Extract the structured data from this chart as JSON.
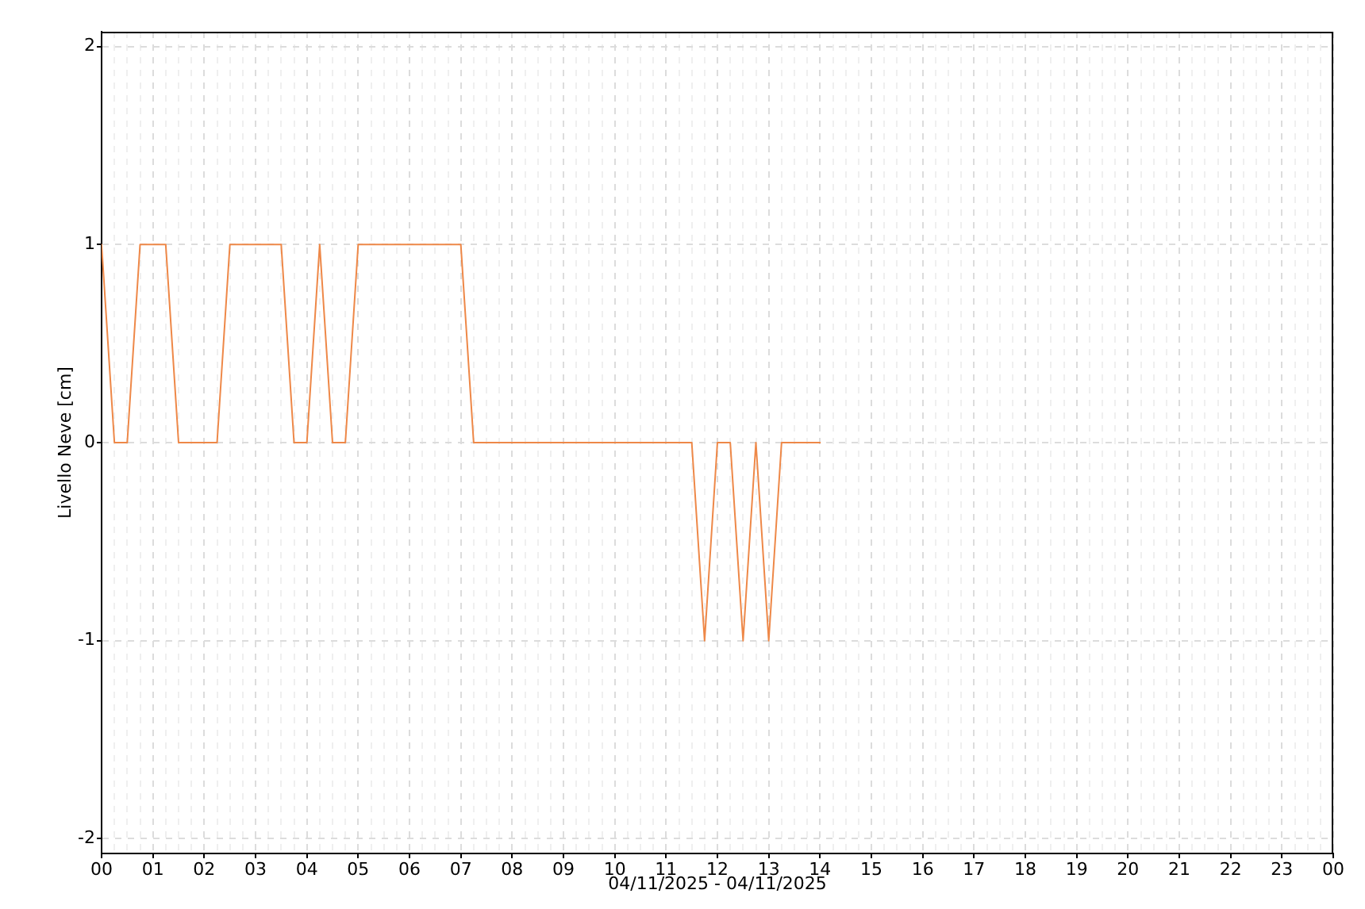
{
  "chart_data": {
    "type": "line",
    "xlabel": "04/11/2025 - 04/11/2025",
    "ylabel": "Livello Neve [cm]",
    "x": [
      0,
      0.25,
      0.5,
      0.75,
      1,
      1.25,
      1.5,
      1.75,
      2,
      2.25,
      2.5,
      2.75,
      3,
      3.25,
      3.5,
      3.75,
      4,
      4.25,
      4.5,
      4.75,
      5,
      5.25,
      5.5,
      5.75,
      6,
      6.25,
      6.5,
      6.75,
      7,
      7.25,
      7.5,
      7.75,
      8,
      8.25,
      8.5,
      8.75,
      9,
      9.25,
      9.5,
      9.75,
      10,
      10.25,
      10.5,
      10.75,
      11,
      11.25,
      11.5,
      11.75,
      12,
      12.25,
      12.5,
      12.75,
      13,
      13.25,
      13.5,
      13.75,
      14
    ],
    "series": [
      {
        "color": "#ee8848",
        "values": [
          1,
          0,
          0,
          1,
          1,
          1,
          0,
          0,
          0,
          0,
          1,
          1,
          1,
          1,
          1,
          0,
          0,
          1,
          0,
          0,
          1,
          1,
          1,
          1,
          1,
          1,
          1,
          1,
          1,
          0,
          0,
          0,
          0,
          0,
          0,
          0,
          0,
          0,
          0,
          0,
          0,
          0,
          0,
          0,
          0,
          0,
          0,
          -1,
          0,
          0,
          -1,
          0,
          -1,
          0,
          0,
          0,
          0
        ]
      }
    ],
    "xlim": [
      0,
      24
    ],
    "xticks": [
      {
        "value": 0,
        "label": "00"
      },
      {
        "value": 0.25,
        "label": null
      },
      {
        "value": 0.5,
        "label": null
      },
      {
        "value": 0.75,
        "label": null
      },
      {
        "value": 1,
        "label": "01"
      },
      {
        "value": 1.25,
        "label": null
      },
      {
        "value": 1.5,
        "label": null
      },
      {
        "value": 1.75,
        "label": null
      },
      {
        "value": 2,
        "label": "02"
      },
      {
        "value": 2.25,
        "label": null
      },
      {
        "value": 2.5,
        "label": null
      },
      {
        "value": 2.75,
        "label": null
      },
      {
        "value": 3,
        "label": "03"
      },
      {
        "value": 3.25,
        "label": null
      },
      {
        "value": 3.5,
        "label": null
      },
      {
        "value": 3.75,
        "label": null
      },
      {
        "value": 4,
        "label": "04"
      },
      {
        "value": 4.25,
        "label": null
      },
      {
        "value": 4.5,
        "label": null
      },
      {
        "value": 4.75,
        "label": null
      },
      {
        "value": 5,
        "label": "05"
      },
      {
        "value": 5.25,
        "label": null
      },
      {
        "value": 5.5,
        "label": null
      },
      {
        "value": 5.75,
        "label": null
      },
      {
        "value": 6,
        "label": "06"
      },
      {
        "value": 6.25,
        "label": null
      },
      {
        "value": 6.5,
        "label": null
      },
      {
        "value": 6.75,
        "label": null
      },
      {
        "value": 7,
        "label": "07"
      },
      {
        "value": 7.25,
        "label": null
      },
      {
        "value": 7.5,
        "label": null
      },
      {
        "value": 7.75,
        "label": null
      },
      {
        "value": 8,
        "label": "08"
      },
      {
        "value": 8.25,
        "label": null
      },
      {
        "value": 8.5,
        "label": null
      },
      {
        "value": 8.75,
        "label": null
      },
      {
        "value": 9,
        "label": "09"
      },
      {
        "value": 9.25,
        "label": null
      },
      {
        "value": 9.5,
        "label": null
      },
      {
        "value": 9.75,
        "label": null
      },
      {
        "value": 10,
        "label": "10"
      },
      {
        "value": 10.25,
        "label": null
      },
      {
        "value": 10.5,
        "label": null
      },
      {
        "value": 10.75,
        "label": null
      },
      {
        "value": 11,
        "label": "11"
      },
      {
        "value": 11.25,
        "label": null
      },
      {
        "value": 11.5,
        "label": null
      },
      {
        "value": 11.75,
        "label": null
      },
      {
        "value": 12,
        "label": "12"
      },
      {
        "value": 12.25,
        "label": null
      },
      {
        "value": 12.5,
        "label": null
      },
      {
        "value": 12.75,
        "label": null
      },
      {
        "value": 13,
        "label": "13"
      },
      {
        "value": 13.25,
        "label": null
      },
      {
        "value": 13.5,
        "label": null
      },
      {
        "value": 13.75,
        "label": null
      },
      {
        "value": 14,
        "label": "14"
      },
      {
        "value": 14.25,
        "label": null
      },
      {
        "value": 14.5,
        "label": null
      },
      {
        "value": 14.75,
        "label": null
      },
      {
        "value": 15,
        "label": "15"
      },
      {
        "value": 15.25,
        "label": null
      },
      {
        "value": 15.5,
        "label": null
      },
      {
        "value": 15.75,
        "label": null
      },
      {
        "value": 16,
        "label": "16"
      },
      {
        "value": 16.25,
        "label": null
      },
      {
        "value": 16.5,
        "label": null
      },
      {
        "value": 16.75,
        "label": null
      },
      {
        "value": 17,
        "label": "17"
      },
      {
        "value": 17.25,
        "label": null
      },
      {
        "value": 17.5,
        "label": null
      },
      {
        "value": 17.75,
        "label": null
      },
      {
        "value": 18,
        "label": "18"
      },
      {
        "value": 18.25,
        "label": null
      },
      {
        "value": 18.5,
        "label": null
      },
      {
        "value": 18.75,
        "label": null
      },
      {
        "value": 19,
        "label": "19"
      },
      {
        "value": 19.25,
        "label": null
      },
      {
        "value": 19.5,
        "label": null
      },
      {
        "value": 19.75,
        "label": null
      },
      {
        "value": 20,
        "label": "20"
      },
      {
        "value": 20.25,
        "label": null
      },
      {
        "value": 20.5,
        "label": null
      },
      {
        "value": 20.75,
        "label": null
      },
      {
        "value": 21,
        "label": "21"
      },
      {
        "value": 21.25,
        "label": null
      },
      {
        "value": 21.5,
        "label": null
      },
      {
        "value": 21.75,
        "label": null
      },
      {
        "value": 22,
        "label": "22"
      },
      {
        "value": 22.25,
        "label": null
      },
      {
        "value": 22.5,
        "label": null
      },
      {
        "value": 22.75,
        "label": null
      },
      {
        "value": 23,
        "label": "23"
      },
      {
        "value": 23.25,
        "label": null
      },
      {
        "value": 23.5,
        "label": null
      },
      {
        "value": 23.75,
        "label": null
      },
      {
        "value": 24,
        "label": "00"
      }
    ],
    "ylim": [
      -2.075,
      2.075
    ],
    "yticks": [
      -2,
      -1,
      0,
      1,
      2
    ],
    "grid": true,
    "marker": "none",
    "line_style": "solid"
  }
}
